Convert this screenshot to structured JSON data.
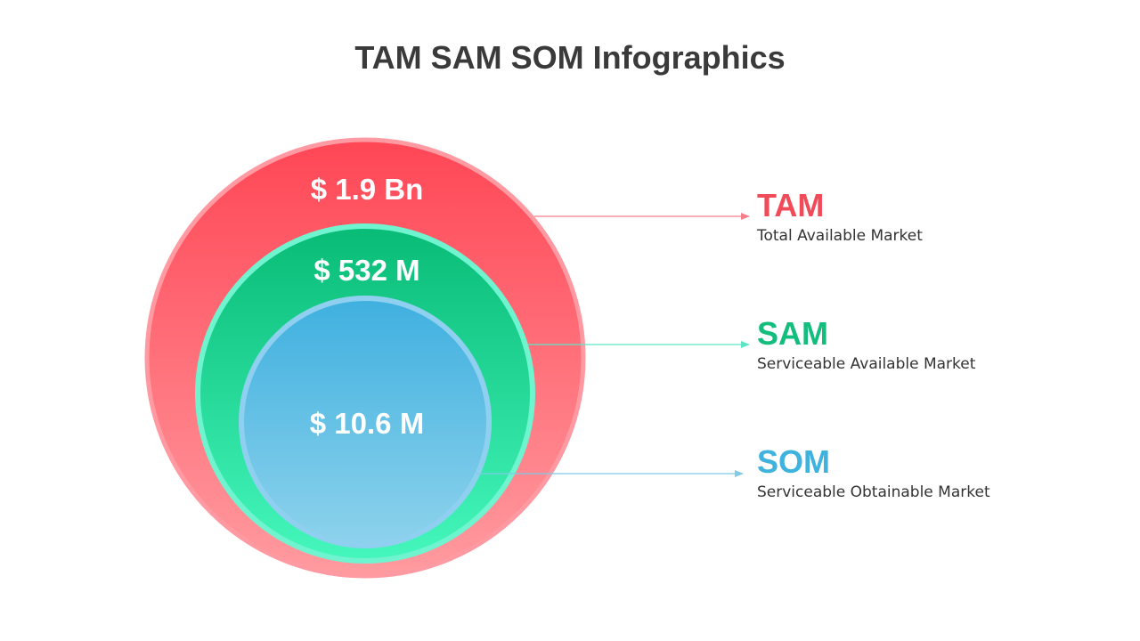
{
  "title": "TAM SAM SOM Infographics",
  "colors": {
    "tam": "#f14a59",
    "sam": "#13bd7d",
    "som": "#3fb3de",
    "title": "#3a3a3a"
  },
  "markets": [
    {
      "key": "tam",
      "abbr": "TAM",
      "label": "Total Available Market",
      "value": "$ 1.9 Bn"
    },
    {
      "key": "sam",
      "abbr": "SAM",
      "label": "Serviceable Available Market",
      "value": "$ 532 M"
    },
    {
      "key": "som",
      "abbr": "SOM",
      "label": "Serviceable Obtainable Market",
      "value": "$ 10.6 M"
    }
  ]
}
